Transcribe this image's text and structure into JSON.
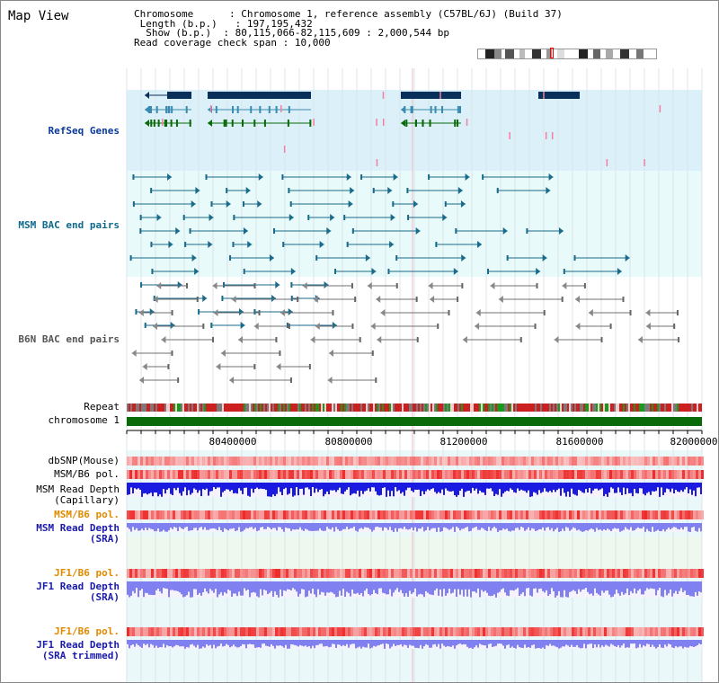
{
  "window": {
    "title": "Map View"
  },
  "info": {
    "chromosome_label": "Chromosome",
    "chromosome_value": "Chromosome 1, reference assembly (C57BL/6J) (Build 37)",
    "length_label": "Length (b.p.)",
    "length_value": "197,195,432",
    "show_label": "Show (b.p.)",
    "show_value": "80,115,066-82,115,609 : 2,000,544 bp",
    "coverage_label": "Read coverage check span",
    "coverage_value": "10,000"
  },
  "tracks": {
    "refseq": "RefSeq Genes",
    "msm_bac": "MSM BAC end pairs",
    "b6n_bac": "B6N BAC end pairs",
    "repeat": "Repeat",
    "chromosome": "chromosome 1",
    "dbsnp": "dbSNP(Mouse)",
    "msm_b6_pol": "MSM/B6 pol.",
    "msm_depth_cap_1": "MSM Read Depth",
    "msm_depth_cap_2": "(Capillary)",
    "msm_b6_pol_2": "MSM/B6 pol.",
    "msm_depth_sra_1": "MSM Read Depth",
    "msm_depth_sra_2": "(SRA)",
    "jf1_b6_pol": "JF1/B6 pol.",
    "jf1_depth_sra_1": "JF1 Read Depth",
    "jf1_depth_sra_2": "(SRA)",
    "jf1_b6_pol_2": "JF1/B6 pol.",
    "jf1_depth_trim_1": "JF1 Read Depth",
    "jf1_depth_trim_2": "(SRA trimmed)"
  },
  "axis": {
    "ticks": [
      "80400000",
      "80800000",
      "81200000",
      "81600000",
      "82000000"
    ]
  },
  "colors": {
    "refseq_bg": "#dcf0fa",
    "bac_bg": "#e8fafa",
    "msm_bac_line": "#1a6a8a",
    "b6n_line": "#707070",
    "chromosome_bar": "#0a6a0a",
    "snp": "#f08080",
    "pol": "#e83030",
    "depth_cap": "#1a1ae0",
    "depth_sra": "#8080f0"
  }
}
